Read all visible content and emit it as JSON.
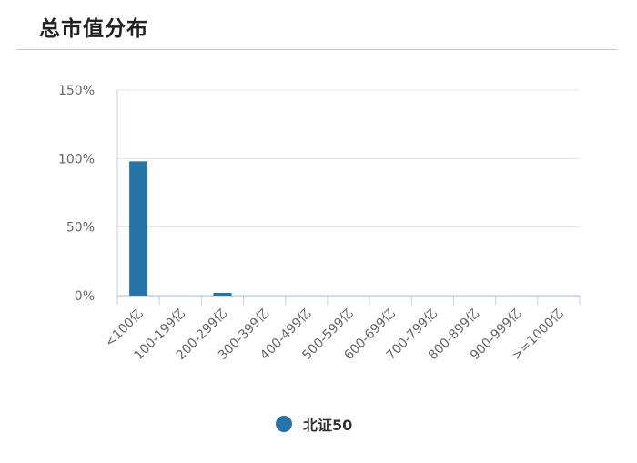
{
  "header": {
    "title": "总市值分布"
  },
  "colors": {
    "series": "#2474a8",
    "grid": "#dde3ee",
    "axis": "#c3d1e6",
    "divider": "#c8c8c8"
  },
  "chart_data": {
    "type": "bar",
    "categories": [
      "<100亿",
      "100-199亿",
      "200-299亿",
      "300-399亿",
      "400-499亿",
      "500-599亿",
      "600-699亿",
      "700-799亿",
      "800-899亿",
      "900-999亿",
      ">=1000亿"
    ],
    "series": [
      {
        "name": "北证50",
        "values": [
          98,
          0,
          2,
          0,
          0,
          0,
          0,
          0,
          0,
          0,
          0
        ]
      }
    ],
    "ylim": [
      0,
      150
    ],
    "yticks": [
      0,
      50,
      100,
      150
    ],
    "ytick_labels": [
      "0%",
      "50%",
      "100%",
      "150%"
    ],
    "grid": true,
    "legend_position": "bottom-center"
  }
}
